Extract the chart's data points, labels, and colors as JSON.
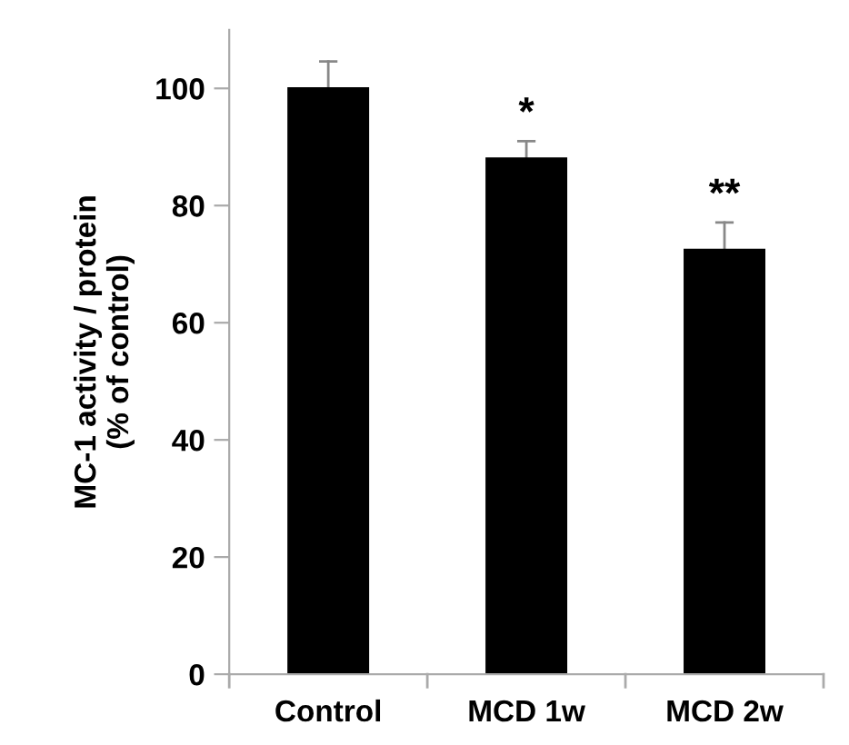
{
  "chart_data": {
    "type": "bar",
    "ylabel": "MC-1 activity / protein\n(% of control)",
    "categories": [
      "Control",
      "MCD 1w",
      "MCD 2w"
    ],
    "values": [
      100,
      88,
      72.4
    ],
    "errors": [
      [
        100,
        104.6
      ],
      [
        88,
        91
      ],
      [
        72.4,
        77.1
      ]
    ],
    "color": "#000000",
    "ylim": [
      0,
      110
    ],
    "yticks": [
      0,
      20,
      40,
      60,
      80,
      100
    ],
    "grid": false,
    "annotations": [
      {
        "text": "*",
        "x": "MCD 1w",
        "y": 91
      },
      {
        "text": "**",
        "x": "MCD 2w",
        "y": 77.1
      }
    ]
  }
}
